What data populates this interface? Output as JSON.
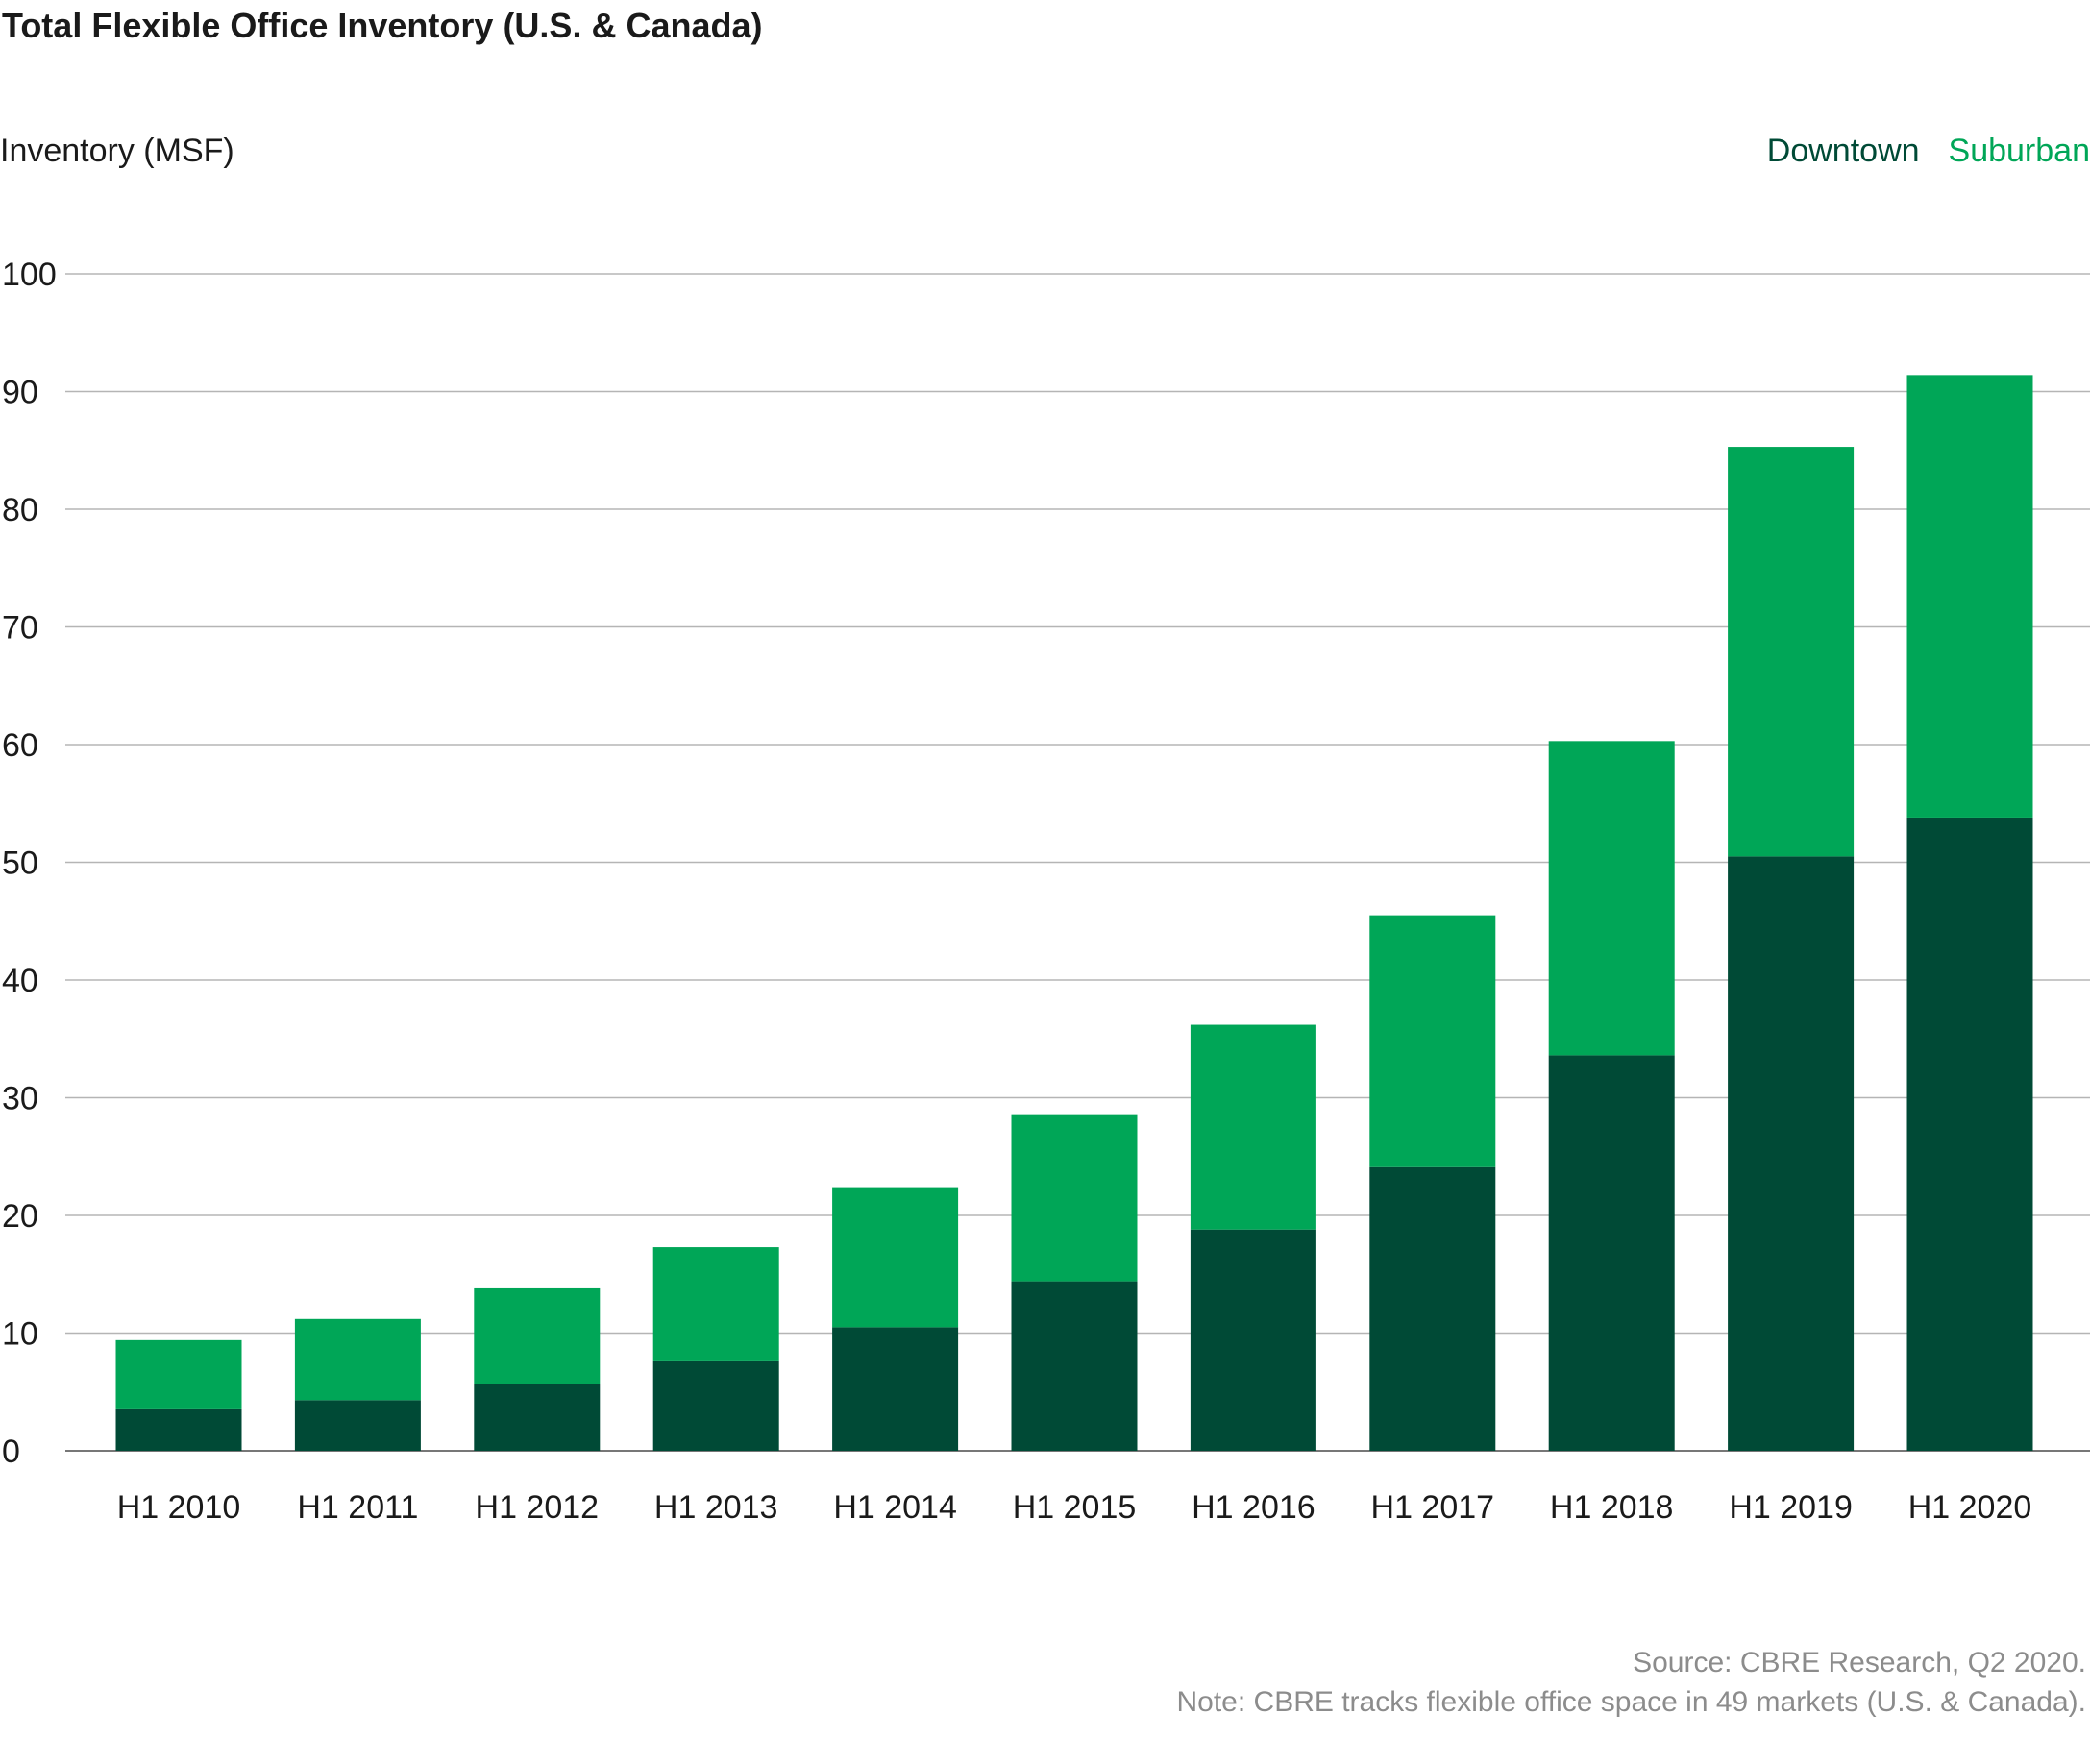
{
  "chart_data": {
    "type": "bar",
    "stacked": true,
    "title": "Total Flexible Office Inventory (U.S. & Canada)",
    "ylabel": "Inventory (MSF)",
    "xlabel": "",
    "ylim": [
      0,
      100
    ],
    "yticks": [
      0,
      10,
      20,
      30,
      40,
      50,
      60,
      70,
      80,
      90,
      100
    ],
    "grid": true,
    "legend_position": "top-right",
    "categories": [
      "H1 2010",
      "H1 2011",
      "H1 2012",
      "H1 2013",
      "H1 2014",
      "H1 2015",
      "H1 2016",
      "H1 2017",
      "H1 2018",
      "H1 2019",
      "H1 2020"
    ],
    "series": [
      {
        "name": "Downtown",
        "color": "#004a36",
        "values": [
          3.6,
          4.3,
          5.7,
          7.6,
          10.5,
          14.4,
          18.8,
          24.1,
          33.6,
          50.5,
          53.8
        ]
      },
      {
        "name": "Suburban",
        "color": "#00a657",
        "values": [
          5.8,
          6.9,
          8.1,
          9.7,
          11.9,
          14.2,
          17.4,
          21.4,
          26.7,
          34.8,
          37.6
        ]
      }
    ],
    "source": "Source: CBRE Research, Q2 2020.",
    "note": "Note: CBRE tracks flexible office space in 49 markets (U.S. & Canada)."
  }
}
